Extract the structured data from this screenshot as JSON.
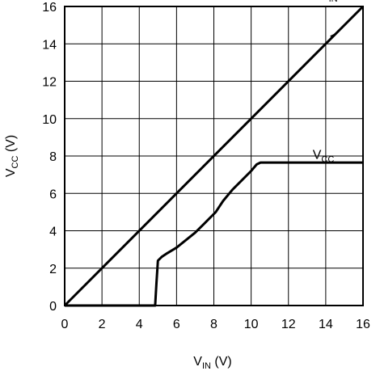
{
  "chart_data": {
    "type": "line",
    "title": "",
    "xlabel": {
      "main": "V",
      "sub": "IN",
      "unit": " (V)"
    },
    "ylabel": {
      "main": "V",
      "sub": "CC",
      "unit": " (V)"
    },
    "xlim": [
      0,
      16
    ],
    "ylim": [
      0,
      16
    ],
    "xticks": [
      0,
      2,
      4,
      6,
      8,
      10,
      12,
      14,
      16
    ],
    "yticks": [
      0,
      2,
      4,
      6,
      8,
      10,
      12,
      14,
      16
    ],
    "grid": true,
    "legend": "none",
    "series": [
      {
        "name": "VIN",
        "label": {
          "main": "V",
          "sub": "IN"
        },
        "x": [
          0,
          16
        ],
        "y": [
          0,
          16
        ]
      },
      {
        "name": "VCC",
        "label": {
          "main": "V",
          "sub": "CC"
        },
        "x": [
          0,
          4.85,
          4.92,
          5.0,
          5.2,
          5.5,
          6.0,
          6.5,
          7.0,
          7.5,
          7.9,
          8.1,
          8.5,
          9.0,
          9.5,
          10.0,
          10.3,
          10.5,
          16
        ],
        "y": [
          0,
          0,
          1.2,
          2.4,
          2.6,
          2.8,
          3.1,
          3.5,
          3.9,
          4.4,
          4.8,
          5.0,
          5.6,
          6.2,
          6.7,
          7.2,
          7.55,
          7.65,
          7.65
        ]
      }
    ]
  }
}
